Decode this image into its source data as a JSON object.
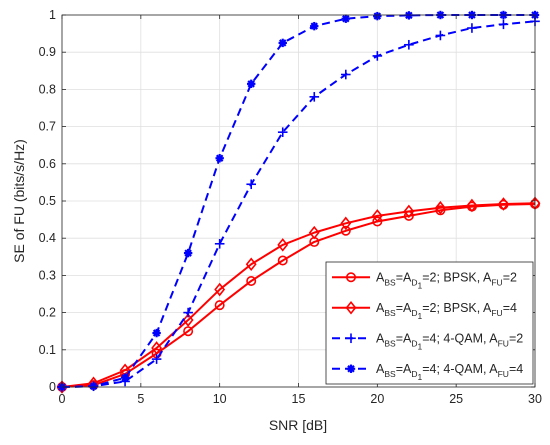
{
  "chart_data": {
    "type": "line",
    "xlabel": "SNR [dB]",
    "ylabel": "SE of FU (bits/s/Hz)",
    "xlim": [
      0,
      30
    ],
    "ylim": [
      0,
      1
    ],
    "xticks": [
      "0",
      "5",
      "10",
      "15",
      "20",
      "25",
      "30"
    ],
    "yticks": [
      "0",
      "0.1",
      "0.2",
      "0.3",
      "0.4",
      "0.5",
      "0.6",
      "0.7",
      "0.8",
      "0.9",
      "1"
    ],
    "grid": true,
    "legend_position": "bottom-right",
    "x": [
      0,
      2,
      4,
      6,
      8,
      10,
      12,
      14,
      16,
      18,
      20,
      22,
      24,
      26,
      28,
      30
    ],
    "series": [
      {
        "name_parts": [
          {
            "t": "A",
            "s": "n"
          },
          {
            "t": "BS",
            "s": "sub"
          },
          {
            "t": "=A",
            "s": "n"
          },
          {
            "t": "D",
            "s": "sub"
          },
          {
            "t": "1",
            "s": "subsub"
          },
          {
            "t": "=2; BPSK, A",
            "s": "n"
          },
          {
            "t": "FU",
            "s": "sub"
          },
          {
            "t": "=2",
            "s": "n"
          }
        ],
        "color": "#ff0000",
        "line_style": "solid",
        "marker": "circle",
        "values": [
          0.0,
          0.005,
          0.035,
          0.09,
          0.15,
          0.22,
          0.285,
          0.34,
          0.39,
          0.42,
          0.445,
          0.46,
          0.475,
          0.485,
          0.49,
          0.492
        ]
      },
      {
        "name_parts": [
          {
            "t": "A",
            "s": "n"
          },
          {
            "t": "BS",
            "s": "sub"
          },
          {
            "t": "=A",
            "s": "n"
          },
          {
            "t": "D",
            "s": "sub"
          },
          {
            "t": "1",
            "s": "subsub"
          },
          {
            "t": "=2; BPSK, A",
            "s": "n"
          },
          {
            "t": "FU",
            "s": "sub"
          },
          {
            "t": "=4",
            "s": "n"
          }
        ],
        "color": "#ff0000",
        "line_style": "solid",
        "marker": "diamond",
        "values": [
          0.0,
          0.01,
          0.045,
          0.105,
          0.18,
          0.262,
          0.33,
          0.382,
          0.415,
          0.44,
          0.46,
          0.472,
          0.482,
          0.488,
          0.492,
          0.494
        ]
      },
      {
        "name_parts": [
          {
            "t": "A",
            "s": "n"
          },
          {
            "t": "BS",
            "s": "sub"
          },
          {
            "t": "=A",
            "s": "n"
          },
          {
            "t": "D",
            "s": "sub"
          },
          {
            "t": "1",
            "s": "subsub"
          },
          {
            "t": "=4; 4-QAM, A",
            "s": "n"
          },
          {
            "t": "FU",
            "s": "sub"
          },
          {
            "t": "=2",
            "s": "n"
          }
        ],
        "color": "#0000ff",
        "line_style": "dashed",
        "marker": "plus",
        "values": [
          0.0,
          0.002,
          0.015,
          0.075,
          0.2,
          0.385,
          0.545,
          0.685,
          0.78,
          0.84,
          0.89,
          0.92,
          0.945,
          0.965,
          0.975,
          0.983
        ]
      },
      {
        "name_parts": [
          {
            "t": "A",
            "s": "n"
          },
          {
            "t": "BS",
            "s": "sub"
          },
          {
            "t": "=A",
            "s": "n"
          },
          {
            "t": "D",
            "s": "sub"
          },
          {
            "t": "1",
            "s": "subsub"
          },
          {
            "t": "=4; 4-QAM, A",
            "s": "n"
          },
          {
            "t": "FU",
            "s": "sub"
          },
          {
            "t": "=4",
            "s": "n"
          }
        ],
        "color": "#0000ff",
        "line_style": "dashed",
        "marker": "asterisk",
        "values": [
          0.0,
          0.002,
          0.025,
          0.145,
          0.36,
          0.615,
          0.815,
          0.925,
          0.97,
          0.99,
          0.997,
          0.999,
          1.0,
          1.0,
          1.0,
          1.0
        ]
      }
    ]
  }
}
